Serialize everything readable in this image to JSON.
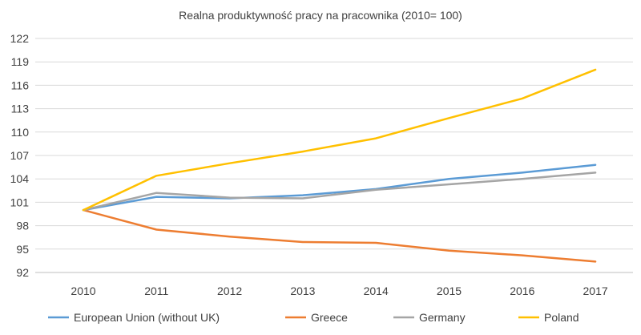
{
  "chart_data": {
    "type": "line",
    "title": "Realna produktywność pracy na pracownika (2010= 100)",
    "xlabel": "",
    "ylabel": "",
    "categories": [
      "2010",
      "2011",
      "2012",
      "2013",
      "2014",
      "2015",
      "2016",
      "2017"
    ],
    "yticks": [
      92,
      95,
      98,
      101,
      104,
      107,
      110,
      113,
      116,
      119,
      122
    ],
    "ylim": [
      92,
      122
    ],
    "grid": true,
    "legend": "bottom",
    "series": [
      {
        "name": "European Union (without UK)",
        "color": "#5b9bd5",
        "values": [
          100.0,
          101.7,
          101.5,
          101.9,
          102.7,
          104.0,
          104.8,
          105.8
        ]
      },
      {
        "name": "Greece",
        "color": "#ed7d31",
        "values": [
          100.0,
          97.5,
          96.6,
          95.9,
          95.8,
          94.8,
          94.2,
          93.4
        ]
      },
      {
        "name": "Germany",
        "color": "#a5a5a5",
        "values": [
          100.0,
          102.2,
          101.6,
          101.5,
          102.6,
          103.3,
          104.0,
          104.8
        ]
      },
      {
        "name": "Poland",
        "color": "#ffc000",
        "values": [
          100.0,
          104.4,
          106.0,
          107.5,
          109.2,
          111.8,
          114.3,
          118.0
        ]
      }
    ]
  }
}
